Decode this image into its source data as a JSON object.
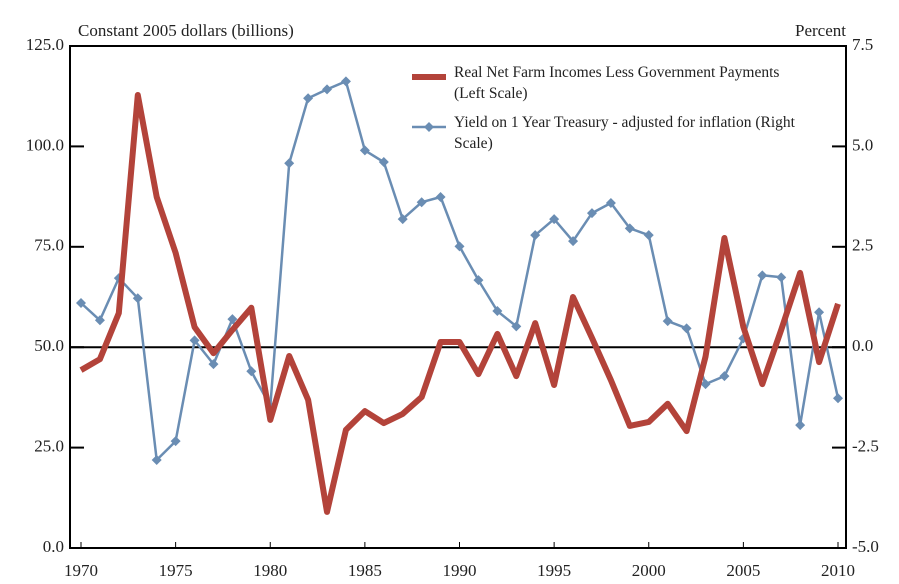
{
  "chart_data": {
    "type": "line",
    "y_label": "Constant 2005 dollars (billions)",
    "y2_label": "Percent",
    "x": [
      1970,
      1971,
      1972,
      1973,
      1974,
      1975,
      1976,
      1977,
      1978,
      1979,
      1980,
      1981,
      1982,
      1983,
      1984,
      1985,
      1986,
      1987,
      1988,
      1989,
      1990,
      1991,
      1992,
      1993,
      1994,
      1995,
      1996,
      1997,
      1998,
      1999,
      2000,
      2001,
      2002,
      2003,
      2004,
      2005,
      2006,
      2007,
      2008,
      2009,
      2010
    ],
    "xlim": [
      1970,
      2010
    ],
    "xticks": [
      1970,
      1975,
      1980,
      1985,
      1990,
      1995,
      2000,
      2005,
      2010
    ],
    "ylim": [
      0,
      125
    ],
    "yticks": [
      {
        "value": 0,
        "label": "0.0"
      },
      {
        "value": 25,
        "label": "25.0"
      },
      {
        "value": 50,
        "label": "50.0"
      },
      {
        "value": 75,
        "label": "75.0"
      },
      {
        "value": 100,
        "label": "100.0"
      },
      {
        "value": 125,
        "label": "125.0"
      }
    ],
    "y2lim": [
      -5,
      7.5
    ],
    "y2ticks": [
      {
        "value": -5,
        "label": "-5.0"
      },
      {
        "value": -2.5,
        "label": "-2.5"
      },
      {
        "value": 0,
        "label": "0.0"
      },
      2.5,
      {
        "value": 5,
        "label": "5.0"
      },
      7.5
    ],
    "legend": "top-right",
    "series": [
      {
        "name": "Real Net Farm Incomes Less Government Payments (Left Scale)",
        "color": "#b3433a",
        "values": [
          44.3,
          47,
          58.5,
          112.8,
          87.4,
          73.5,
          55,
          48.5,
          54.3,
          59.8,
          31.9,
          47.8,
          36.9,
          9,
          29.4,
          34.1,
          31.1,
          33.4,
          37.6,
          51.3,
          51.3,
          43.3,
          53.3,
          42.8,
          56,
          40.6,
          62.5,
          52.3,
          41.8,
          30.4,
          31.4,
          35.9,
          29.1,
          47.6,
          77.2,
          55,
          40.8,
          54.3,
          68.5,
          46.3,
          60.8
        ]
      },
      {
        "name": "Yield on 1 Year Treasury - adjusted for inflation (Right Scale)",
        "color": "#6a8db3",
        "axis": "y2",
        "values": [
          1.1,
          0.67,
          1.72,
          1.22,
          -2.81,
          -2.34,
          0.17,
          -0.42,
          0.7,
          -0.6,
          -1.47,
          4.58,
          6.2,
          6.42,
          6.62,
          4.9,
          4.61,
          3.19,
          3.61,
          3.74,
          2.51,
          1.67,
          0.9,
          0.52,
          2.79,
          3.19,
          2.64,
          3.34,
          3.59,
          2.96,
          2.79,
          0.65,
          0.47,
          -0.92,
          -0.72,
          0.22,
          1.79,
          1.74,
          -1.94,
          0.87,
          -1.27
        ]
      }
    ]
  }
}
